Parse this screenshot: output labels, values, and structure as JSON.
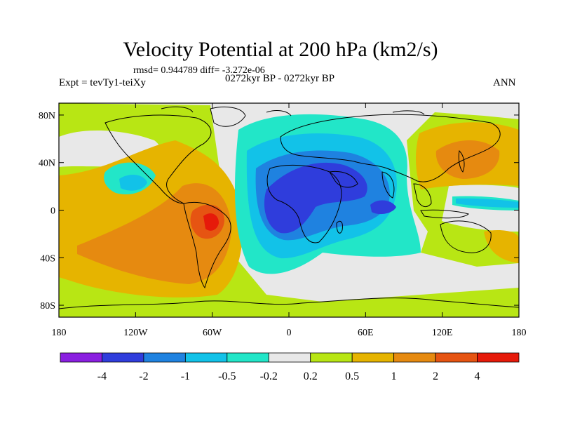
{
  "title": "Velocity Potential at 200 hPa (km2/s)",
  "stats_line": "rmsd= 0.944789 diff= -3.272e-06",
  "left_label": "Expt = tevTy1-teiXy",
  "center_label": "0272kyr BP - 0272kyr BP",
  "right_label": "ANN",
  "map": {
    "projection": "cylindrical equidistant",
    "lon_range": [
      -180,
      180
    ],
    "lat_range": [
      -90,
      90
    ],
    "lat_ticks": [
      {
        "value": 80,
        "label": "80N"
      },
      {
        "value": 40,
        "label": "40N"
      },
      {
        "value": 0,
        "label": "0"
      },
      {
        "value": -40,
        "label": "40S"
      },
      {
        "value": -80,
        "label": "80S"
      }
    ],
    "lon_ticks": [
      {
        "value": -180,
        "label": "180"
      },
      {
        "value": -120,
        "label": "120W"
      },
      {
        "value": -60,
        "label": "60W"
      },
      {
        "value": 0,
        "label": "0"
      },
      {
        "value": 60,
        "label": "60E"
      },
      {
        "value": 120,
        "label": "120E"
      },
      {
        "value": 180,
        "label": "180"
      }
    ],
    "field": "velocity potential difference"
  },
  "colorbar": {
    "colors": [
      "#8a1fe0",
      "#2f3ddc",
      "#1f82e0",
      "#12c2e8",
      "#22e6c8",
      "#e8e8e8",
      "#b8e614",
      "#e6b400",
      "#e68a10",
      "#e65412",
      "#e61a0a"
    ],
    "labels": [
      "-4",
      "-2",
      "-1",
      "-0.5",
      "-0.2",
      "0.2",
      "0.5",
      "1",
      "2",
      "4"
    ]
  }
}
